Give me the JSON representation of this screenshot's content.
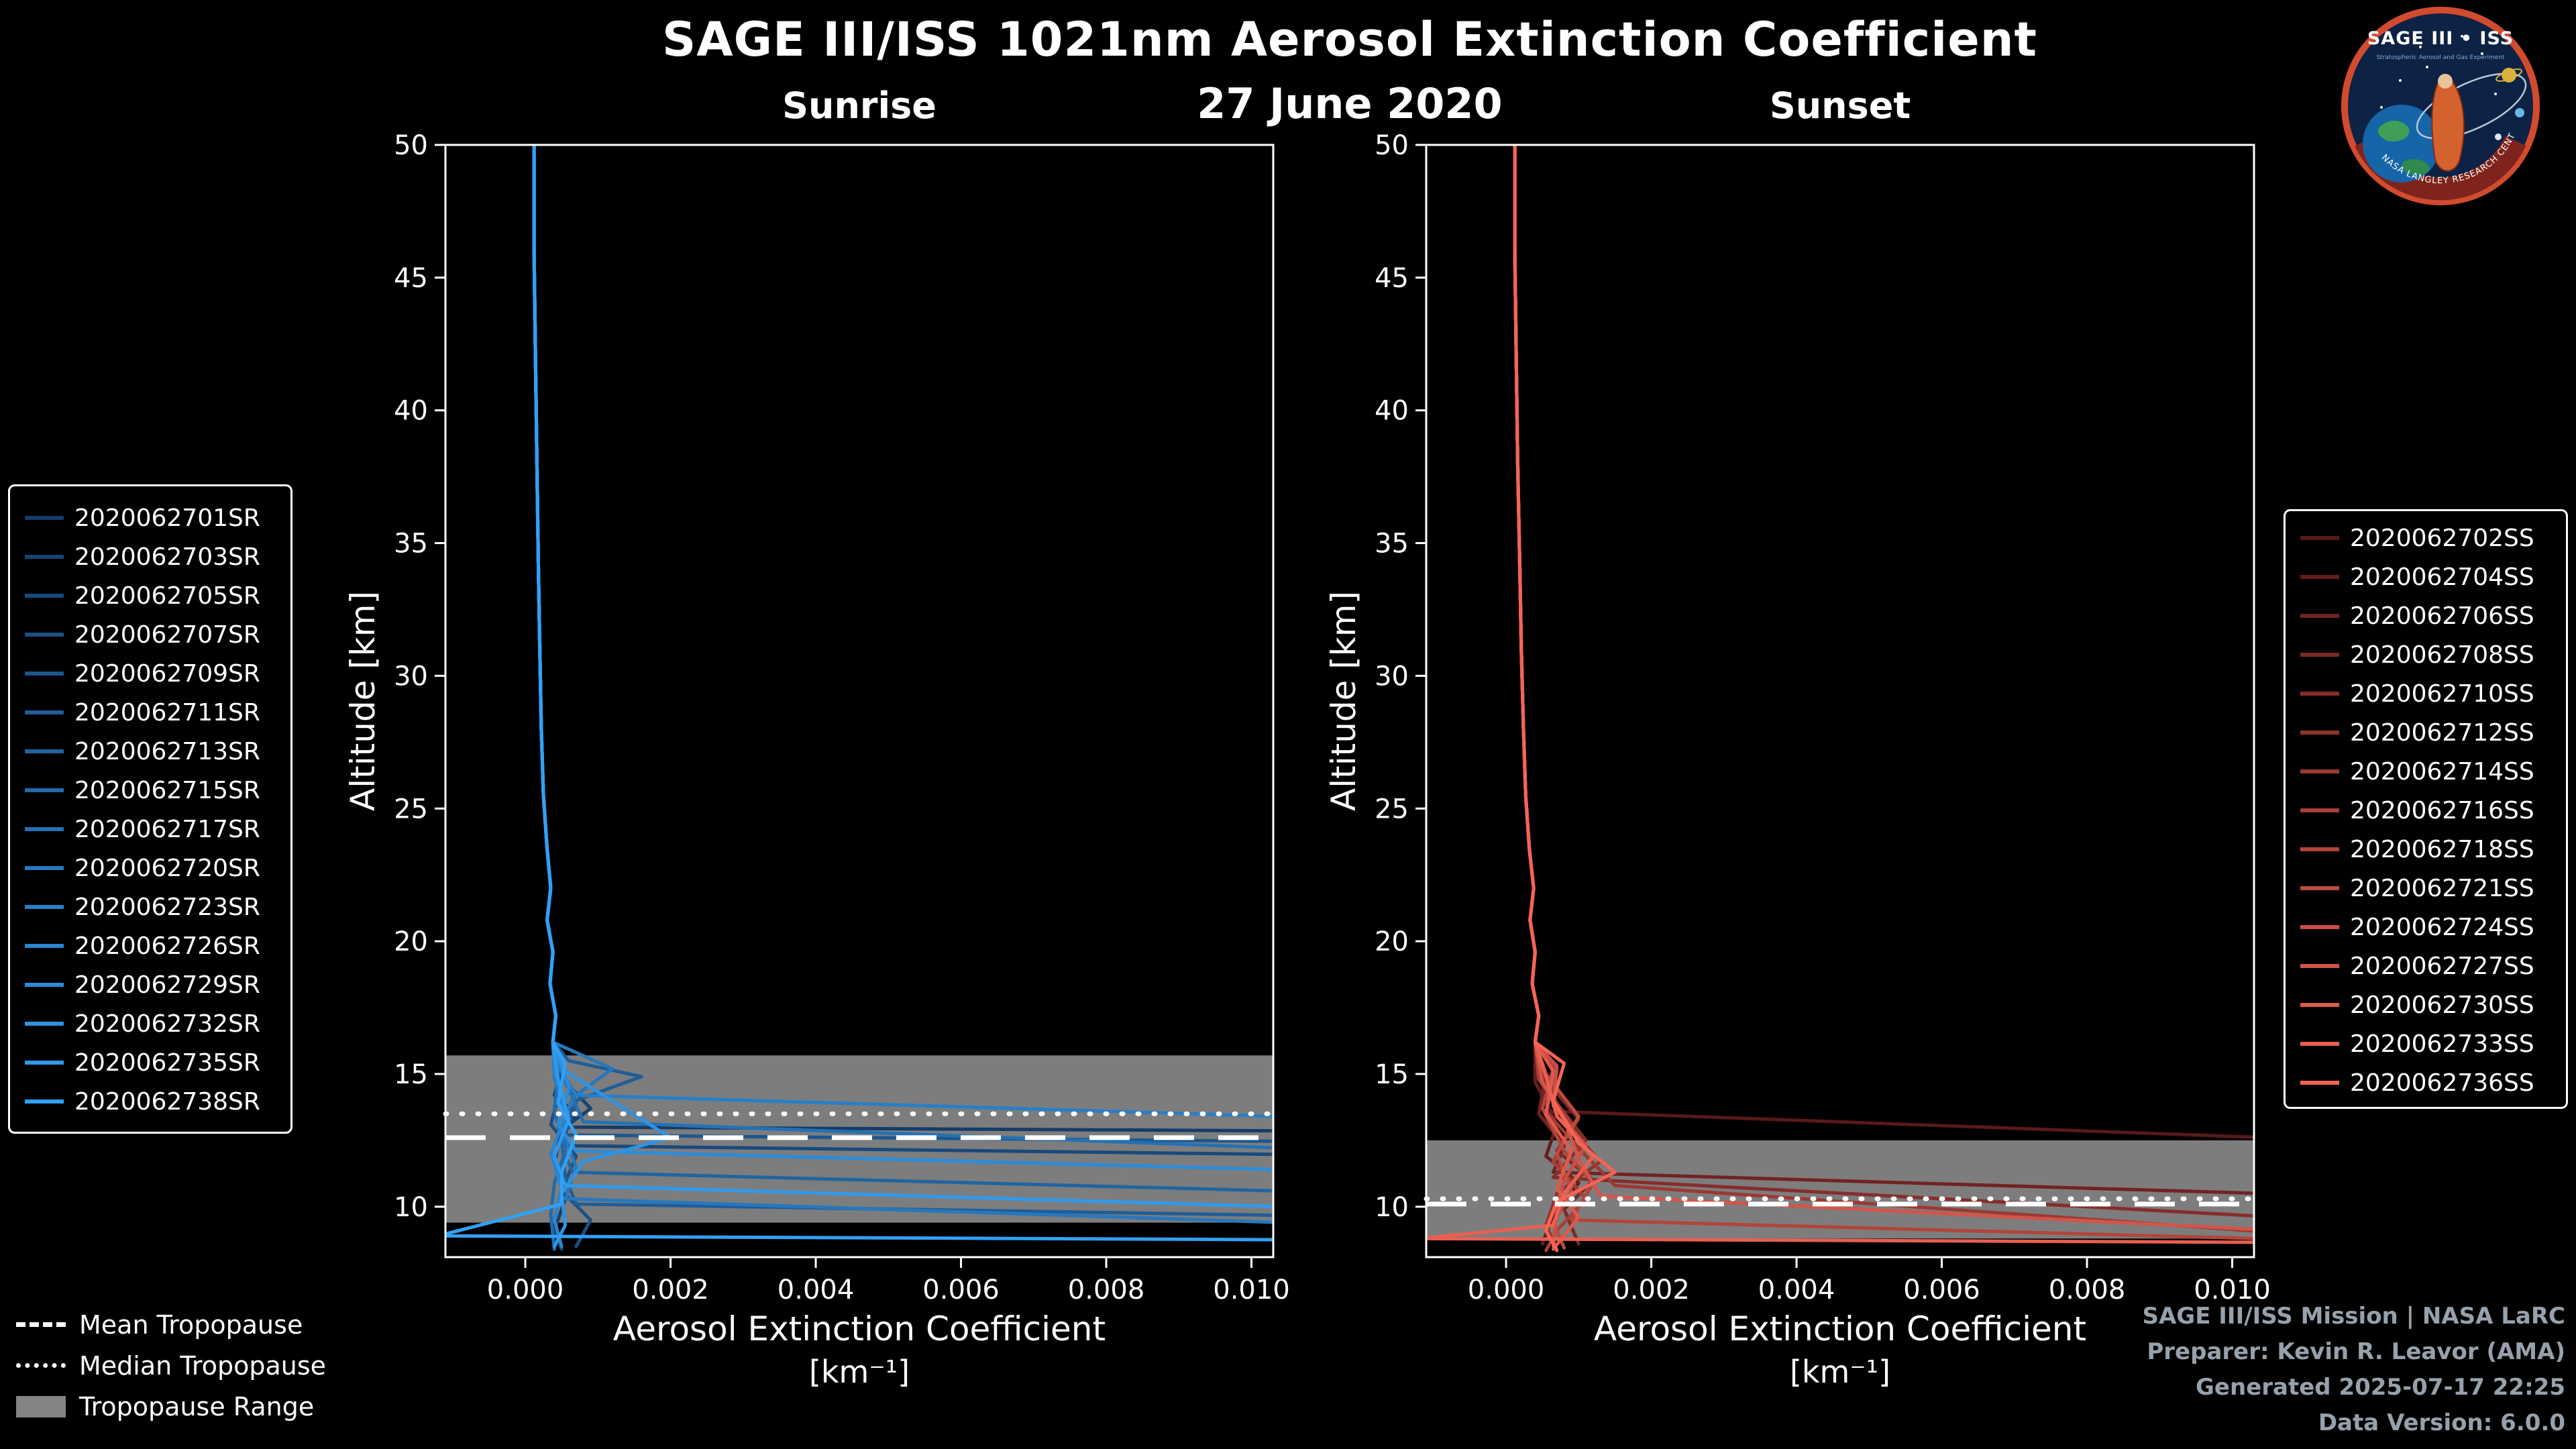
{
  "header": {
    "title": "SAGE III/ISS 1021nm Aerosol Extinction Coefficient",
    "date": "27 June 2020"
  },
  "logo": {
    "title": "SAGE III • ISS",
    "subtitle": "Stratospheric Aerosol and Gas Experiment",
    "bottom_text": "NASA LANGLEY RESEARCH CENTER"
  },
  "credits": {
    "mission": "SAGE III/ISS Mission | NASA LaRC",
    "preparer": "Preparer: Kevin R. Leavor (AMA)",
    "generated": "Generated 2025-07-17 22:25",
    "version": "Data Version: 6.0.0"
  },
  "tropopause_legend": {
    "mean": "Mean Tropopause",
    "median": "Median Tropopause",
    "range": "Tropopause Range"
  },
  "chart_data": [
    {
      "type": "line",
      "name": "sunrise",
      "title": "Sunrise",
      "xlabel": "Aerosol Extinction Coefficient",
      "xunits": "[km⁻¹]",
      "ylabel": "Altitude [km]",
      "xlim": [
        -0.0011,
        0.0103
      ],
      "ylim": [
        8.1,
        50
      ],
      "xticks": [
        0,
        0.002,
        0.004,
        0.006,
        0.008,
        0.01
      ],
      "xtick_labels": [
        "0.000",
        "0.002",
        "0.004",
        "0.006",
        "0.008",
        "0.010"
      ],
      "yticks": [
        10,
        15,
        20,
        25,
        30,
        35,
        40,
        45,
        50
      ],
      "ytick_labels": [
        "10",
        "15",
        "20",
        "25",
        "30",
        "35",
        "40",
        "45",
        "50"
      ],
      "grid": false,
      "band_color": "#848484",
      "tropopause": {
        "mean": 12.6,
        "median": 13.5,
        "range": [
          9.4,
          15.7
        ]
      },
      "base_profile": [
        [
          0.00012,
          50
        ],
        [
          0.00012,
          46
        ],
        [
          0.00014,
          42
        ],
        [
          0.00016,
          38
        ],
        [
          0.00018,
          34
        ],
        [
          0.0002,
          31
        ],
        [
          0.00022,
          28
        ],
        [
          0.00025,
          25.5
        ],
        [
          0.0003,
          23.5
        ],
        [
          0.00035,
          22
        ],
        [
          0.0003,
          20.8
        ],
        [
          0.00038,
          19.6
        ],
        [
          0.00034,
          18.4
        ],
        [
          0.00042,
          17.2
        ],
        [
          0.00038,
          16.2
        ]
      ],
      "series": [
        {
          "name": "2020062701SR",
          "color": "#153c69",
          "lower": [
            [
              0.0005,
              15.2
            ],
            [
              0.0004,
              14.2
            ],
            [
              0.0007,
              13.5
            ],
            [
              0.0006,
              13.0
            ],
            [
              0.011,
              12.85
            ]
          ]
        },
        {
          "name": "2020062703SR",
          "color": "#174372",
          "lower": [
            [
              0.00045,
              15.0
            ],
            [
              0.0009,
              13.7
            ],
            [
              0.0005,
              12.9
            ],
            [
              0.0004,
              11.6
            ],
            [
              0.00055,
              10.3
            ],
            [
              0.0004,
              9.1
            ],
            [
              0.0005,
              8.4
            ]
          ]
        },
        {
          "name": "2020062705SR",
          "color": "#19497c",
          "lower": [
            [
              0.0004,
              15.1
            ],
            [
              0.0006,
              13.3
            ],
            [
              0.0005,
              12.3
            ],
            [
              0.011,
              11.95
            ]
          ]
        },
        {
          "name": "2020062707SR",
          "color": "#1b5085",
          "lower": [
            [
              0.0005,
              14.6
            ],
            [
              0.00035,
              13.1
            ],
            [
              0.0007,
              11.9
            ],
            [
              0.0005,
              10.6
            ],
            [
              0.0009,
              9.5
            ],
            [
              0.0007,
              8.5
            ]
          ]
        },
        {
          "name": "2020062709SR",
          "color": "#1d578e",
          "lower": [
            [
              0.00045,
              15.3
            ],
            [
              0.0007,
              13.9
            ],
            [
              0.00055,
              12.7
            ],
            [
              0.011,
              12.45
            ]
          ]
        },
        {
          "name": "2020062711SR",
          "color": "#1f5d98",
          "lower": [
            [
              0.0006,
              15.5
            ],
            [
              0.0016,
              14.9
            ],
            [
              0.0007,
              14.0
            ],
            [
              0.0005,
              12.6
            ],
            [
              0.00055,
              11.1
            ],
            [
              0.0007,
              10.1
            ],
            [
              0.011,
              9.65
            ]
          ]
        },
        {
          "name": "2020062713SR",
          "color": "#2164a1",
          "lower": [
            [
              0.0004,
              14.9
            ],
            [
              0.00055,
              13.5
            ],
            [
              0.0005,
              12.3
            ],
            [
              0.00065,
              11.3
            ],
            [
              0.011,
              10.55
            ]
          ]
        },
        {
          "name": "2020062715SR",
          "color": "#236baa",
          "lower": [
            [
              0.00045,
              15.1
            ],
            [
              0.0004,
              13.6
            ],
            [
              0.00055,
              12.1
            ],
            [
              0.0004,
              10.9
            ],
            [
              0.00035,
              9.7
            ],
            [
              0.0004,
              8.4
            ]
          ]
        },
        {
          "name": "2020062717SR",
          "color": "#2471b4",
          "lower": [
            [
              0.00055,
              14.7
            ],
            [
              0.0008,
              13.2
            ],
            [
              0.011,
              12.15
            ]
          ]
        },
        {
          "name": "2020062720SR",
          "color": "#2678bd",
          "lower": [
            [
              0.0012,
              15.2
            ],
            [
              0.00065,
              14.1
            ],
            [
              0.0005,
              12.9
            ],
            [
              0.0007,
              11.5
            ],
            [
              0.00055,
              10.3
            ],
            [
              0.011,
              9.35
            ]
          ]
        },
        {
          "name": "2020062723SR",
          "color": "#287fc7",
          "lower": [
            [
              0.00045,
              15.3
            ],
            [
              0.0007,
              14.2
            ],
            [
              0.011,
              13.35
            ]
          ]
        },
        {
          "name": "2020062726SR",
          "color": "#2a85d0",
          "lower": [
            [
              0.0004,
              15.0
            ],
            [
              0.00055,
              13.4
            ],
            [
              0.00035,
              12.0
            ],
            [
              0.0005,
              10.7
            ],
            [
              0.0004,
              9.5
            ],
            [
              0.0005,
              8.5
            ]
          ]
        },
        {
          "name": "2020062729SR",
          "color": "#2c8cd9",
          "lower": [
            [
              0.0006,
              14.5
            ],
            [
              0.00045,
              13.1
            ],
            [
              0.0007,
              12.1
            ],
            [
              0.011,
              11.35
            ]
          ]
        },
        {
          "name": "2020062732SR",
          "color": "#2e93e3",
          "lower": [
            [
              0.00055,
              15.1
            ],
            [
              0.002,
              12.6
            ],
            [
              0.0008,
              11.7
            ],
            [
              0.0005,
              10.5
            ],
            [
              0.00055,
              9.3
            ],
            [
              0.0004,
              8.5
            ]
          ]
        },
        {
          "name": "2020062735SR",
          "color": "#3099ec",
          "lower": [
            [
              0.00045,
              14.8
            ],
            [
              0.0006,
              13.3
            ],
            [
              0.0004,
              11.9
            ],
            [
              0.00055,
              10.8
            ],
            [
              0.011,
              9.95
            ]
          ]
        },
        {
          "name": "2020062738SR",
          "color": "#32a0f5",
          "lower": [
            [
              0.00055,
              15.4
            ],
            [
              0.00045,
              13.9
            ],
            [
              0.0007,
              12.7
            ],
            [
              0.0005,
              11.3
            ],
            [
              0.0005,
              10.1
            ],
            [
              -0.0012,
              8.9
            ],
            [
              0.011,
              8.75
            ]
          ]
        }
      ]
    },
    {
      "type": "line",
      "name": "sunset",
      "title": "Sunset",
      "xlabel": "Aerosol Extinction Coefficient",
      "xunits": "[km⁻¹]",
      "ylabel": "Altitude [km]",
      "xlim": [
        -0.0011,
        0.0103
      ],
      "ylim": [
        8.1,
        50
      ],
      "xticks": [
        0,
        0.002,
        0.004,
        0.006,
        0.008,
        0.01
      ],
      "xtick_labels": [
        "0.000",
        "0.002",
        "0.004",
        "0.006",
        "0.008",
        "0.010"
      ],
      "yticks": [
        10,
        15,
        20,
        25,
        30,
        35,
        40,
        45,
        50
      ],
      "ytick_labels": [
        "10",
        "15",
        "20",
        "25",
        "30",
        "35",
        "40",
        "45",
        "50"
      ],
      "grid": false,
      "band_color": "#848484",
      "tropopause": {
        "mean": 10.1,
        "median": 10.3,
        "range": [
          8.8,
          12.5
        ]
      },
      "base_profile": [
        [
          0.00012,
          50
        ],
        [
          0.00012,
          46
        ],
        [
          0.00014,
          42
        ],
        [
          0.00016,
          38
        ],
        [
          0.00019,
          34
        ],
        [
          0.00021,
          31
        ],
        [
          0.00024,
          28
        ],
        [
          0.00027,
          25.5
        ],
        [
          0.00032,
          23.5
        ],
        [
          0.00038,
          22
        ],
        [
          0.00033,
          20.8
        ],
        [
          0.0004,
          19.6
        ],
        [
          0.00036,
          18.4
        ],
        [
          0.00045,
          17.2
        ],
        [
          0.0004,
          16.2
        ]
      ],
      "series": [
        {
          "name": "2020062702SS",
          "color": "#5a1919",
          "lower": [
            [
              0.00045,
              15.0
            ],
            [
              0.0006,
              13.6
            ],
            [
              0.011,
              12.55
            ]
          ]
        },
        {
          "name": "2020062704SS",
          "color": "#651e1d",
          "lower": [
            [
              0.0004,
              14.7
            ],
            [
              0.0007,
              13.1
            ],
            [
              0.00055,
              11.9
            ],
            [
              0.001,
              10.9
            ],
            [
              0.00065,
              9.7
            ],
            [
              0.0005,
              8.6
            ]
          ]
        },
        {
          "name": "2020062706SS",
          "color": "#702422",
          "lower": [
            [
              0.00055,
              15.0
            ],
            [
              0.00045,
              13.5
            ],
            [
              0.0008,
              12.3
            ],
            [
              0.00065,
              11.3
            ],
            [
              0.011,
              10.45
            ]
          ]
        },
        {
          "name": "2020062708SS",
          "color": "#7b2926",
          "lower": [
            [
              0.0006,
              14.6
            ],
            [
              0.001,
              13.3
            ],
            [
              0.0007,
              12.1
            ],
            [
              0.0012,
              11.0
            ],
            [
              0.0008,
              9.9
            ],
            [
              0.001,
              8.6
            ]
          ]
        },
        {
          "name": "2020062710SS",
          "color": "#862e2a",
          "lower": [
            [
              0.00045,
              15.3
            ],
            [
              0.0007,
              13.9
            ],
            [
              0.0011,
              12.5
            ],
            [
              0.00065,
              11.1
            ],
            [
              0.011,
              9.55
            ]
          ]
        },
        {
          "name": "2020062712SS",
          "color": "#91342e",
          "lower": [
            [
              0.00055,
              14.9
            ],
            [
              0.0008,
              13.2
            ],
            [
              0.0013,
              11.7
            ],
            [
              0.0007,
              10.5
            ],
            [
              0.00055,
              9.3
            ],
            [
              0.0007,
              8.4
            ]
          ]
        },
        {
          "name": "2020062714SS",
          "color": "#9c3933",
          "lower": [
            [
              0.0007,
              15.1
            ],
            [
              0.00055,
              13.6
            ],
            [
              0.001,
              12.2
            ],
            [
              0.0015,
              10.8
            ],
            [
              0.011,
              8.95
            ]
          ]
        },
        {
          "name": "2020062716SS",
          "color": "#a83f37",
          "lower": [
            [
              0.00045,
              14.8
            ],
            [
              0.0009,
              13.1
            ],
            [
              0.00065,
              11.7
            ],
            [
              0.0011,
              10.3
            ],
            [
              0.0007,
              9.1
            ],
            [
              0.00055,
              8.35
            ]
          ]
        },
        {
          "name": "2020062718SS",
          "color": "#b3443b",
          "lower": [
            [
              0.00065,
              15.2
            ],
            [
              0.0005,
              13.7
            ],
            [
              0.0008,
              12.1
            ],
            [
              0.0012,
              10.9
            ],
            [
              0.0009,
              9.5
            ],
            [
              0.011,
              8.75
            ]
          ]
        },
        {
          "name": "2020062721SS",
          "color": "#be493f",
          "lower": [
            [
              0.00055,
              15.0
            ],
            [
              0.001,
              13.4
            ],
            [
              0.0007,
              12.0
            ],
            [
              0.0009,
              10.6
            ],
            [
              0.00065,
              9.4
            ],
            [
              0.0008,
              8.45
            ]
          ]
        },
        {
          "name": "2020062724SS",
          "color": "#c94f44",
          "lower": [
            [
              0.0007,
              15.3
            ],
            [
              0.00065,
              13.8
            ],
            [
              0.0011,
              12.3
            ],
            [
              0.0008,
              11.0
            ],
            [
              0.0007,
              9.9
            ],
            [
              0.00065,
              8.5
            ]
          ]
        },
        {
          "name": "2020062727SS",
          "color": "#d45448",
          "lower": [
            [
              0.0005,
              14.7
            ],
            [
              0.0008,
              13.3
            ],
            [
              0.001,
              11.8
            ],
            [
              0.0013,
              10.4
            ],
            [
              0.011,
              9.05
            ]
          ]
        },
        {
          "name": "2020062730SS",
          "color": "#df594c",
          "lower": [
            [
              0.00065,
              15.1
            ],
            [
              0.00055,
              13.5
            ],
            [
              0.0009,
              12.1
            ],
            [
              0.0007,
              10.7
            ],
            [
              0.001,
              9.6
            ],
            [
              0.00065,
              8.4
            ]
          ]
        },
        {
          "name": "2020062733SS",
          "color": "#ea5f51",
          "lower": [
            [
              0.00055,
              14.9
            ],
            [
              0.0007,
              13.4
            ],
            [
              0.0012,
              11.9
            ],
            [
              0.0008,
              10.5
            ],
            [
              0.00065,
              9.3
            ],
            [
              -0.0012,
              8.8
            ],
            [
              0.011,
              8.65
            ]
          ]
        },
        {
          "name": "2020062736SS",
          "color": "#f56455",
          "lower": [
            [
              0.0008,
              15.4
            ],
            [
              0.00065,
              14.0
            ],
            [
              0.001,
              12.4
            ],
            [
              0.0015,
              11.3
            ],
            [
              0.0007,
              10.2
            ],
            [
              0.00055,
              9.1
            ],
            [
              0.0007,
              8.35
            ]
          ]
        }
      ]
    }
  ]
}
